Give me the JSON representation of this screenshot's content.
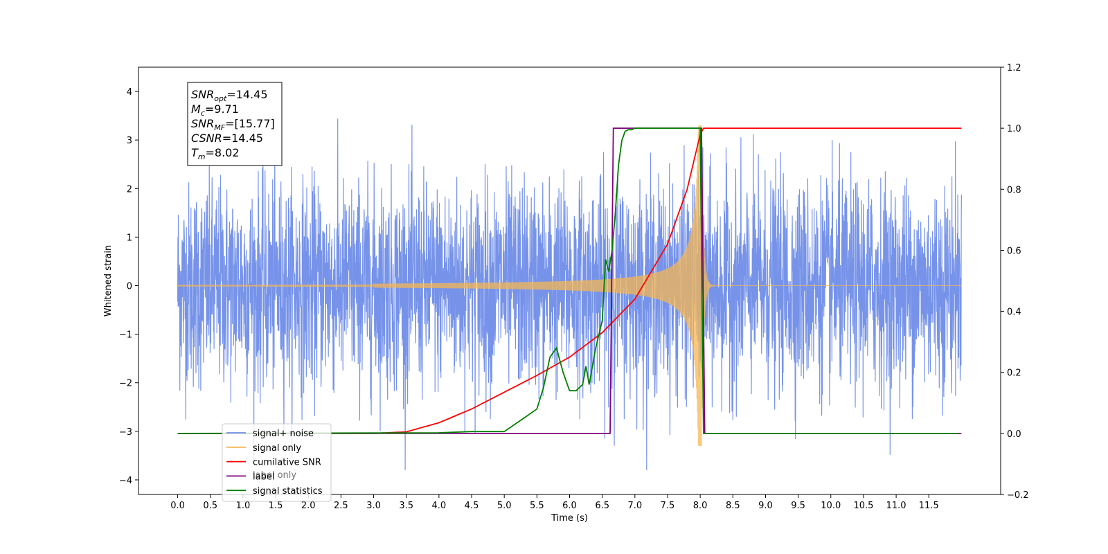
{
  "chart_data": {
    "type": "line",
    "xlabel": "Time (s)",
    "ylabel": "Whitened strain",
    "x_ticks": [
      "0.0",
      "0.5",
      "1.0",
      "1.5",
      "2.0",
      "2.5",
      "3.0",
      "3.5",
      "4.0",
      "4.5",
      "5.0",
      "5.5",
      "6.0",
      "6.5",
      "7.0",
      "7.5",
      "8.0",
      "8.5",
      "9.0",
      "9.5",
      "10.0",
      "10.5",
      "11.0",
      "11.5"
    ],
    "xlim": [
      -0.6,
      12.6
    ],
    "ylim_left": [
      -4.3,
      4.5
    ],
    "ylim_right": [
      -0.2,
      1.2
    ],
    "left_ticks": [
      "−4",
      "−3",
      "−2",
      "−1",
      "0",
      "1",
      "2",
      "3",
      "4"
    ],
    "left_tick_values": [
      -4,
      -3,
      -2,
      -1,
      0,
      1,
      2,
      3,
      4
    ],
    "right_ticks": [
      "−0.2",
      "0.0",
      "0.2",
      "0.4",
      "0.6",
      "0.8",
      "1.0",
      "1.2"
    ],
    "right_tick_values": [
      -0.2,
      0,
      0.2,
      0.4,
      0.6,
      0.8,
      1.0,
      1.2
    ],
    "grid": false,
    "legend_position": "lower-left",
    "colors": {
      "noise": "#6f8de8",
      "signal": "#f5b553",
      "csnr": "#ff0000",
      "label": "#800080",
      "stats": "#008000"
    },
    "series": [
      {
        "name": "signal+ noise",
        "axis": "left",
        "description_x_range": [
          0.0,
          12.0
        ],
        "envelope": [
          -3.8,
          4.1
        ]
      },
      {
        "name": "signal only",
        "axis": "left",
        "x_range": [
          0.0,
          12.0
        ],
        "merger_time": 8.02,
        "peak_amplitude": 3.3
      },
      {
        "name": "cumilative SNR",
        "axis": "right",
        "x": [
          0.0,
          2.5,
          3.0,
          3.5,
          4.0,
          4.5,
          5.0,
          5.5,
          6.0,
          6.5,
          7.0,
          7.5,
          7.8,
          8.0,
          8.05,
          12.0
        ],
        "y": [
          0.0,
          0.0,
          0.0,
          0.005,
          0.035,
          0.08,
          0.135,
          0.19,
          0.25,
          0.33,
          0.44,
          0.62,
          0.8,
          0.98,
          1.0,
          1.0
        ]
      },
      {
        "name": "label",
        "axis": "right",
        "x": [
          0.0,
          6.62,
          6.67,
          8.02,
          8.07,
          12.0
        ],
        "y": [
          0.0,
          0.0,
          1.0,
          1.0,
          0.0,
          0.0
        ]
      },
      {
        "name": "signal statistics",
        "axis": "right",
        "x": [
          0.0,
          4.0,
          4.5,
          5.0,
          5.3,
          5.5,
          5.6,
          5.7,
          5.8,
          5.9,
          6.0,
          6.1,
          6.2,
          6.25,
          6.3,
          6.4,
          6.5,
          6.55,
          6.6,
          6.65,
          6.7,
          6.75,
          6.8,
          6.85,
          6.9,
          6.95,
          7.0,
          7.2,
          7.3,
          7.5,
          8.0,
          8.05,
          8.1,
          11.95
        ],
        "y": [
          0.0,
          0.002,
          0.006,
          0.006,
          0.05,
          0.08,
          0.15,
          0.25,
          0.28,
          0.2,
          0.14,
          0.14,
          0.16,
          0.22,
          0.16,
          0.28,
          0.37,
          0.57,
          0.53,
          0.6,
          0.72,
          0.88,
          0.96,
          0.99,
          0.995,
          0.995,
          1.0,
          1.0,
          1.0,
          1.0,
          1.0,
          0.0,
          0.0,
          0.0
        ]
      }
    ],
    "annotation_lines": [
      {
        "name": "SNR",
        "sub": "opt",
        "value": "=14.45"
      },
      {
        "name": "M",
        "sub": "c",
        "value": "=9.71"
      },
      {
        "name": "SNR",
        "sub": "MF",
        "value": "=[15.77]"
      },
      {
        "name": "CSNR",
        "sub": "",
        "value": "=14.45"
      },
      {
        "name": "T",
        "sub": "m",
        "value": "=8.02"
      }
    ],
    "legend": [
      {
        "label": "signal+ noise",
        "color": "#6f8de8"
      },
      {
        "label": "signal only",
        "color": "#f5b553"
      },
      {
        "label": "cumilative SNR",
        "color": "#ff0000"
      },
      {
        "label": "label",
        "color": "#800080"
      },
      {
        "label": "signal statistics",
        "color": "#008000"
      }
    ],
    "legend_ghost_text": "label only"
  }
}
